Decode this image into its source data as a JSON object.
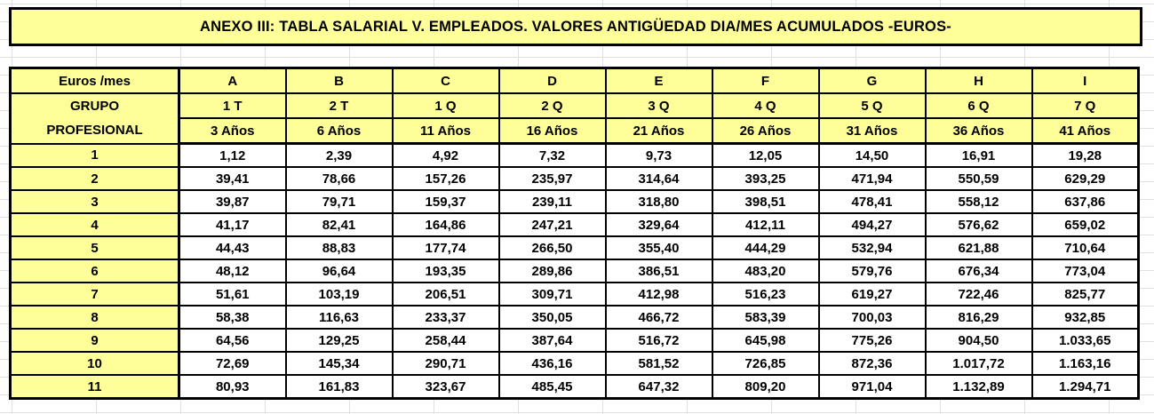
{
  "title": "ANEXO III: TABLA SALARIAL V. EMPLEADOS. VALORES ANTIGÜEDAD DIA/MES ACUMULADOS -EUROS-",
  "table": {
    "corner_label": "Euros /mes",
    "corner_line2": "GRUPO",
    "corner_line3": "PROFESIONAL",
    "columns": [
      {
        "letter": "A",
        "period": "1 T",
        "years": "3 Años"
      },
      {
        "letter": "B",
        "period": "2 T",
        "years": "6 Años"
      },
      {
        "letter": "C",
        "period": "1 Q",
        "years": "11 Años"
      },
      {
        "letter": "D",
        "period": "2 Q",
        "years": "16 Años"
      },
      {
        "letter": "E",
        "period": "3 Q",
        "years": "21 Años"
      },
      {
        "letter": "F",
        "period": "4 Q",
        "years": "26 Años"
      },
      {
        "letter": "G",
        "period": "5 Q",
        "years": "31 Años"
      },
      {
        "letter": "H",
        "period": "6 Q",
        "years": "36 Años"
      },
      {
        "letter": "I",
        "period": "7 Q",
        "years": "41 Años"
      }
    ],
    "rows": [
      {
        "group": "1",
        "values": [
          "1,12",
          "2,39",
          "4,92",
          "7,32",
          "9,73",
          "12,05",
          "14,50",
          "16,91",
          "19,28"
        ]
      },
      {
        "group": "2",
        "values": [
          "39,41",
          "78,66",
          "157,26",
          "235,97",
          "314,64",
          "393,25",
          "471,94",
          "550,59",
          "629,29"
        ]
      },
      {
        "group": "3",
        "values": [
          "39,87",
          "79,71",
          "159,37",
          "239,11",
          "318,80",
          "398,51",
          "478,41",
          "558,12",
          "637,86"
        ]
      },
      {
        "group": "4",
        "values": [
          "41,17",
          "82,41",
          "164,86",
          "247,21",
          "329,64",
          "412,11",
          "494,27",
          "576,62",
          "659,02"
        ]
      },
      {
        "group": "5",
        "values": [
          "44,43",
          "88,83",
          "177,74",
          "266,50",
          "355,40",
          "444,29",
          "532,94",
          "621,88",
          "710,64"
        ]
      },
      {
        "group": "6",
        "values": [
          "48,12",
          "96,64",
          "193,35",
          "289,86",
          "386,51",
          "483,20",
          "579,76",
          "676,34",
          "773,04"
        ]
      },
      {
        "group": "7",
        "values": [
          "51,61",
          "103,19",
          "206,51",
          "309,71",
          "412,98",
          "516,23",
          "619,27",
          "722,46",
          "825,77"
        ]
      },
      {
        "group": "8",
        "values": [
          "58,38",
          "116,63",
          "233,37",
          "350,05",
          "466,72",
          "583,39",
          "700,03",
          "816,29",
          "932,85"
        ]
      },
      {
        "group": "9",
        "values": [
          "64,56",
          "129,25",
          "258,44",
          "387,64",
          "516,72",
          "645,98",
          "775,26",
          "904,50",
          "1.033,65"
        ]
      },
      {
        "group": "10",
        "values": [
          "72,69",
          "145,34",
          "290,71",
          "436,16",
          "581,52",
          "726,85",
          "872,36",
          "1.017,72",
          "1.163,16"
        ]
      },
      {
        "group": "11",
        "values": [
          "80,93",
          "161,83",
          "323,67",
          "485,45",
          "647,32",
          "809,20",
          "971,04",
          "1.132,89",
          "1.294,71"
        ]
      }
    ]
  },
  "colors": {
    "header_fill": "#FFFF99",
    "cell_fill": "#FFFFFF",
    "border": "#000000",
    "gridline": "#E0E0E0"
  }
}
